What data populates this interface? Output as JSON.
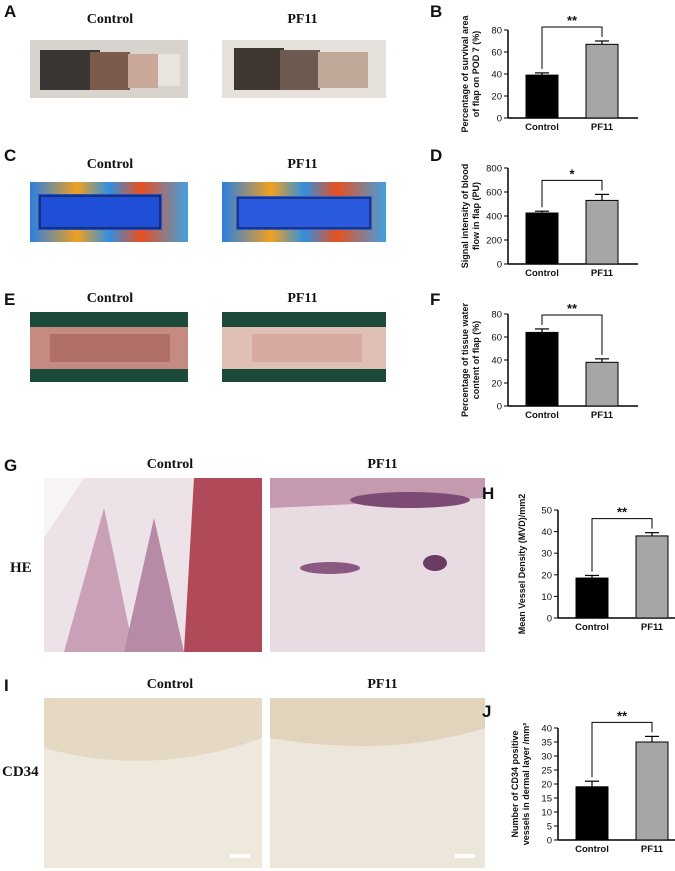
{
  "panels": {
    "A": {
      "label": "A",
      "left_caption": "Control",
      "right_caption": "PF11"
    },
    "B": {
      "label": "B"
    },
    "C": {
      "label": "C",
      "left_caption": "Control",
      "right_caption": "PF11"
    },
    "D": {
      "label": "D"
    },
    "E": {
      "label": "E",
      "left_caption": "Control",
      "right_caption": "PF11"
    },
    "F": {
      "label": "F"
    },
    "G": {
      "label": "G",
      "left_caption": "Control",
      "right_caption": "PF11",
      "row_label": "HE"
    },
    "H": {
      "label": "H"
    },
    "I": {
      "label": "I",
      "left_caption": "Control",
      "right_caption": "PF11",
      "row_label": "CD34"
    },
    "J": {
      "label": "J"
    }
  },
  "colors": {
    "control_bar": "#000000",
    "pf11_bar": "#a6a6a6",
    "he_stain": "#c9a0b6",
    "cd34_stain": "#e8dccb",
    "laser_blue": "#1f4fd6"
  },
  "chart_data": [
    {
      "id": "B",
      "type": "bar",
      "categories": [
        "Control",
        "PF11"
      ],
      "values": [
        39,
        67
      ],
      "errors": [
        2,
        3
      ],
      "ylabel": "Percentage of survival area of flap on POD 7 (%)",
      "ylim": [
        0,
        80
      ],
      "yticks": [
        "0",
        "20",
        "40",
        "60",
        "80"
      ],
      "significance": "**"
    },
    {
      "id": "D",
      "type": "bar",
      "categories": [
        "Control",
        "PF11"
      ],
      "values": [
        425,
        530
      ],
      "errors": [
        15,
        50
      ],
      "ylabel": "Signal intensity of blood flow in flap (PU)",
      "ylim": [
        0,
        800
      ],
      "yticks": [
        "0",
        "200",
        "400",
        "600",
        "800"
      ],
      "significance": "*"
    },
    {
      "id": "F",
      "type": "bar",
      "categories": [
        "Control",
        "PF11"
      ],
      "values": [
        64,
        38
      ],
      "errors": [
        3,
        3
      ],
      "ylabel": "Percentage of tissue water content of flap (%)",
      "ylim": [
        0,
        80
      ],
      "yticks": [
        "0",
        "20",
        "40",
        "60",
        "80"
      ],
      "significance": "**"
    },
    {
      "id": "H",
      "type": "bar",
      "categories": [
        "Control",
        "PF11"
      ],
      "values": [
        18.5,
        38
      ],
      "errors": [
        1.2,
        1.5
      ],
      "ylabel": "Mean Vessel Density (MVD)/mm2",
      "ylim": [
        0,
        50
      ],
      "yticks": [
        "0",
        "10",
        "20",
        "30",
        "40",
        "50"
      ],
      "significance": "**"
    },
    {
      "id": "J",
      "type": "bar",
      "categories": [
        "Control",
        "PF11"
      ],
      "values": [
        19,
        35
      ],
      "errors": [
        2,
        2
      ],
      "ylabel": "Number of CD34 positive vessels in dermal layer /mm²",
      "ylim": [
        0,
        40
      ],
      "yticks": [
        "0",
        "5",
        "10",
        "15",
        "20",
        "25",
        "30",
        "35",
        "40"
      ],
      "significance": "**"
    }
  ]
}
